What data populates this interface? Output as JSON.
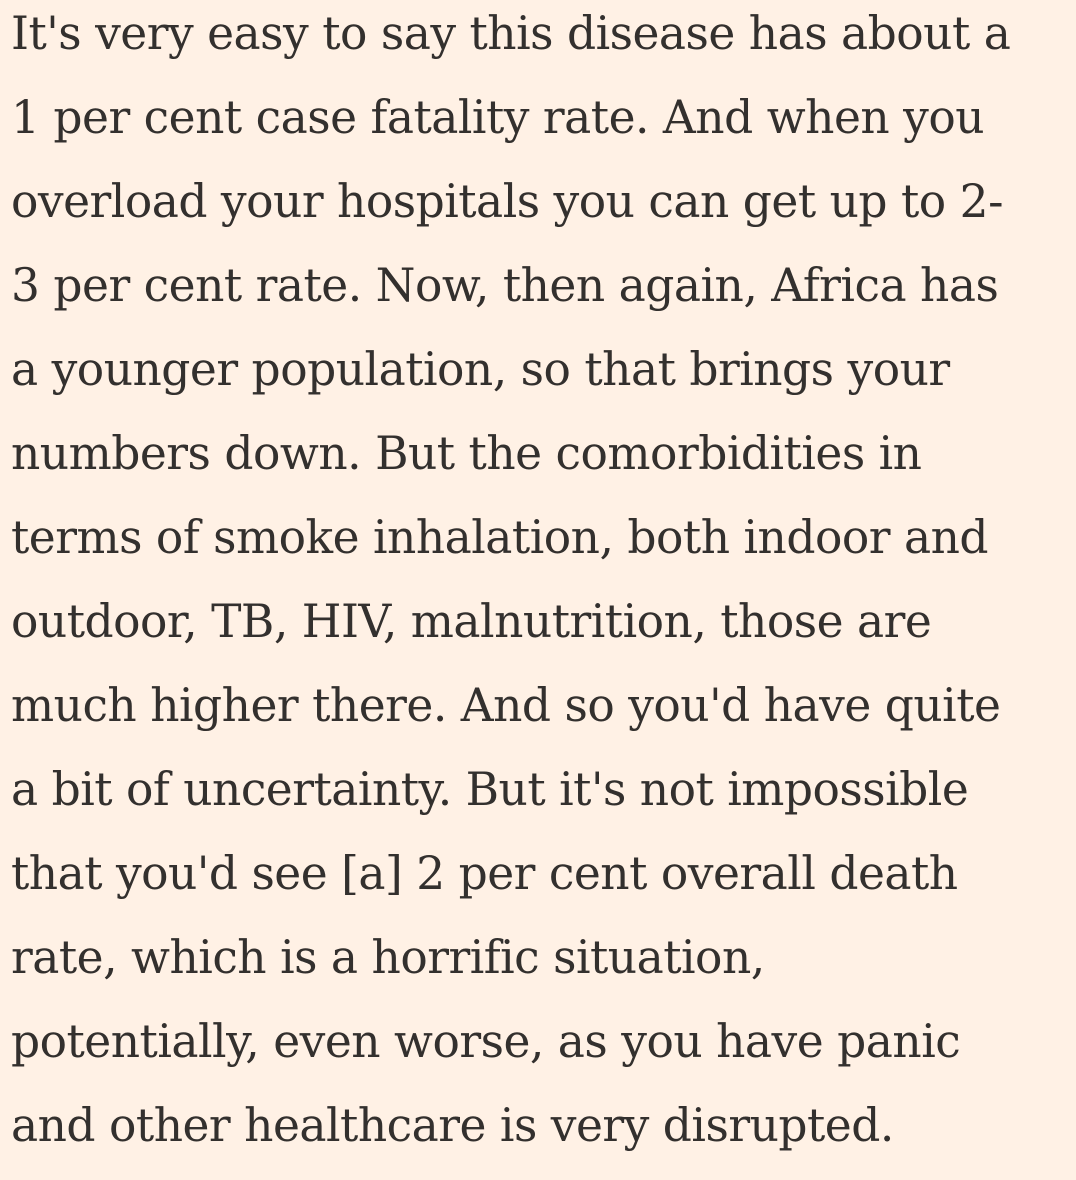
{
  "article": {
    "lines": [
      "It's very easy to say this disease has about a",
      "1 per cent case fatality rate. And when you",
      "overload your hospitals you can get up to 2-",
      "3 per cent rate. Now, then again, Africa has",
      "a younger population, so that brings your",
      "numbers down. But the comorbidities in",
      "terms of smoke inhalation, both indoor and",
      "outdoor, TB, HIV, malnutrition, those are",
      "much higher there. And so you'd have quite",
      "a bit of uncertainty. But it's not impossible",
      "that you'd see [a] 2 per cent overall death",
      "rate, which is a horrific situation,",
      "potentially, even worse, as you have panic",
      "and other healthcare is very disrupted."
    ]
  },
  "colors": {
    "background": "#fff1e5",
    "text": "#33302e"
  }
}
